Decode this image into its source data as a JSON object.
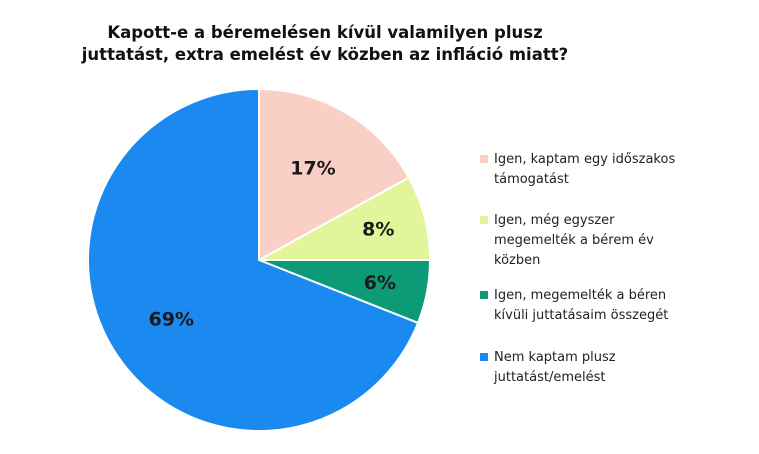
{
  "chart_data": {
    "type": "pie",
    "title_lines": [
      "Kapott-e a béremelésen kívül valamilyen plusz",
      "juttatást, extra emelést év közben az infláció miatt?"
    ],
    "slices": [
      {
        "label_lines": [
          "Igen, kaptam egy időszakos",
          "támogatást"
        ],
        "value": 17,
        "display": "17%",
        "color": "#F9CFC6"
      },
      {
        "label_lines": [
          "Igen, még egyszer",
          "megemelték a bérem év",
          "közben"
        ],
        "value": 8,
        "display": "8%",
        "color": "#E3F59B"
      },
      {
        "label_lines": [
          "Igen, megemelték a béren",
          "kívüli juttatásaim összegét"
        ],
        "value": 6,
        "display": "6%",
        "color": "#0D9B77"
      },
      {
        "label_lines": [
          "Nem kaptam plusz",
          "juttatást/emelést"
        ],
        "value": 69,
        "display": "69%",
        "color": "#1A8AF0"
      }
    ],
    "start_angle_deg": 0,
    "direction": "clockwise",
    "legend_position": "right"
  }
}
